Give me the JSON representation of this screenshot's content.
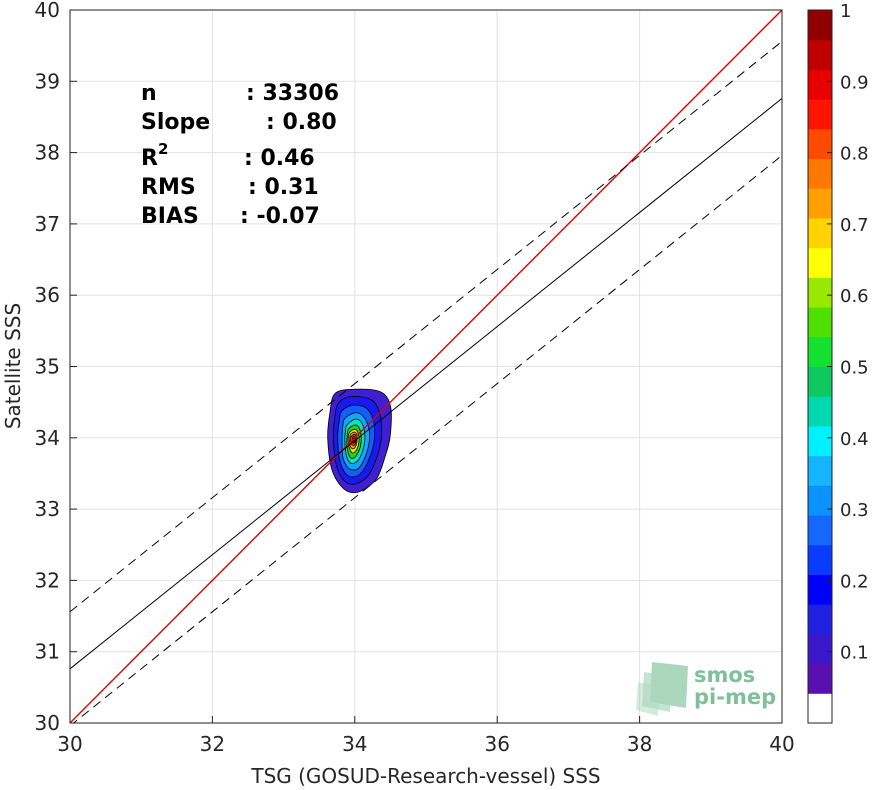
{
  "chart_data": {
    "type": "scatter",
    "subtype": "density-contour",
    "xlabel": "TSG (GOSUD-Research-vessel) SSS",
    "ylabel": "Satellite SSS",
    "xlim": [
      30,
      40
    ],
    "ylim": [
      30,
      40
    ],
    "xticks": [
      "30",
      "32",
      "34",
      "36",
      "38",
      "40"
    ],
    "yticks": [
      "30",
      "31",
      "32",
      "33",
      "34",
      "35",
      "36",
      "37",
      "38",
      "39",
      "40"
    ],
    "grid": true,
    "stats": [
      {
        "label": "n",
        "value": ": 33306"
      },
      {
        "label": "Slope",
        "value": ": 0.80"
      },
      {
        "label": "R",
        "sup": "2",
        "value": ": 0.46"
      },
      {
        "label": "RMS",
        "value": ": 0.31"
      },
      {
        "label": "BIAS",
        "value": ": -0.07"
      }
    ],
    "lines": [
      {
        "kind": "one-to-one",
        "color": "#e00000",
        "style": "solid",
        "points": [
          [
            30,
            30
          ],
          [
            40,
            40
          ]
        ]
      },
      {
        "kind": "regression",
        "color": "#000000",
        "style": "solid",
        "points": [
          [
            30,
            30.76
          ],
          [
            40,
            38.76
          ]
        ]
      },
      {
        "kind": "upper-bound",
        "color": "#000000",
        "style": "dashed",
        "points": [
          [
            30,
            31.56
          ],
          [
            40,
            39.56
          ]
        ]
      },
      {
        "kind": "lower-bound",
        "color": "#000000",
        "style": "dashed",
        "points": [
          [
            30,
            29.96
          ],
          [
            40,
            37.96
          ]
        ]
      }
    ],
    "density_contours": [
      {
        "level": 0.05,
        "color": "#3f1fd0",
        "points": [
          [
            33.72,
            34.62
          ],
          [
            33.97,
            34.68
          ],
          [
            34.35,
            34.65
          ],
          [
            34.5,
            34.45
          ],
          [
            34.5,
            34.05
          ],
          [
            34.43,
            33.75
          ],
          [
            34.3,
            33.42
          ],
          [
            34.05,
            33.24
          ],
          [
            33.85,
            33.28
          ],
          [
            33.68,
            33.55
          ],
          [
            33.62,
            34.0
          ],
          [
            33.65,
            34.35
          ]
        ]
      },
      {
        "level": 0.15,
        "color": "#1a1af0",
        "points": [
          [
            33.78,
            34.5
          ],
          [
            33.98,
            34.58
          ],
          [
            34.25,
            34.52
          ],
          [
            34.36,
            34.3
          ],
          [
            34.37,
            33.98
          ],
          [
            34.3,
            33.7
          ],
          [
            34.18,
            33.46
          ],
          [
            34.0,
            33.35
          ],
          [
            33.85,
            33.4
          ],
          [
            33.74,
            33.62
          ],
          [
            33.7,
            34.0
          ],
          [
            33.72,
            34.3
          ]
        ]
      },
      {
        "level": 0.25,
        "color": "#1060ff",
        "points": [
          [
            33.82,
            34.38
          ],
          [
            33.99,
            34.46
          ],
          [
            34.18,
            34.4
          ],
          [
            34.27,
            34.2
          ],
          [
            34.27,
            33.95
          ],
          [
            34.2,
            33.7
          ],
          [
            34.1,
            33.52
          ],
          [
            33.98,
            33.45
          ],
          [
            33.87,
            33.5
          ],
          [
            33.79,
            33.68
          ],
          [
            33.76,
            34.0
          ],
          [
            33.78,
            34.22
          ]
        ]
      },
      {
        "level": 0.35,
        "color": "#10a8ff",
        "points": [
          [
            33.86,
            34.27
          ],
          [
            34.0,
            34.35
          ],
          [
            34.12,
            34.3
          ],
          [
            34.2,
            34.12
          ],
          [
            34.2,
            33.92
          ],
          [
            34.14,
            33.72
          ],
          [
            34.06,
            33.58
          ],
          [
            33.97,
            33.55
          ],
          [
            33.89,
            33.6
          ],
          [
            33.83,
            33.74
          ],
          [
            33.82,
            34.0
          ],
          [
            33.83,
            34.15
          ]
        ]
      },
      {
        "level": 0.45,
        "color": "#00e6c0",
        "points": [
          [
            33.89,
            34.18
          ],
          [
            34.0,
            34.26
          ],
          [
            34.09,
            34.22
          ],
          [
            34.14,
            34.06
          ],
          [
            34.13,
            33.9
          ],
          [
            34.08,
            33.74
          ],
          [
            34.02,
            33.66
          ],
          [
            33.95,
            33.64
          ],
          [
            33.9,
            33.7
          ],
          [
            33.87,
            33.82
          ],
          [
            33.86,
            34.0
          ],
          [
            33.87,
            34.1
          ]
        ]
      },
      {
        "level": 0.55,
        "color": "#30d010",
        "points": [
          [
            33.91,
            34.12
          ],
          [
            34.0,
            34.18
          ],
          [
            34.06,
            34.14
          ],
          [
            34.09,
            34.02
          ],
          [
            34.08,
            33.88
          ],
          [
            34.04,
            33.78
          ],
          [
            33.99,
            33.72
          ],
          [
            33.94,
            33.72
          ],
          [
            33.91,
            33.78
          ],
          [
            33.89,
            33.88
          ],
          [
            33.89,
            34.0
          ]
        ]
      },
      {
        "level": 0.65,
        "color": "#f0ec00",
        "points": [
          [
            33.93,
            34.08
          ],
          [
            34.0,
            34.12
          ],
          [
            34.04,
            34.08
          ],
          [
            34.06,
            33.98
          ],
          [
            34.04,
            33.86
          ],
          [
            34.0,
            33.8
          ],
          [
            33.96,
            33.79
          ],
          [
            33.93,
            33.84
          ],
          [
            33.91,
            33.92
          ],
          [
            33.91,
            34.02
          ]
        ]
      },
      {
        "level": 0.75,
        "color": "#ffa000",
        "points": [
          [
            33.94,
            34.05
          ],
          [
            34.0,
            34.08
          ],
          [
            34.03,
            34.03
          ],
          [
            34.03,
            33.94
          ],
          [
            34.0,
            33.86
          ],
          [
            33.96,
            33.85
          ],
          [
            33.93,
            33.9
          ],
          [
            33.93,
            33.99
          ]
        ]
      },
      {
        "level": 0.85,
        "color": "#ff3000",
        "points": [
          [
            33.95,
            34.02
          ],
          [
            34.0,
            34.05
          ],
          [
            34.02,
            34.0
          ],
          [
            34.01,
            33.92
          ],
          [
            33.98,
            33.89
          ],
          [
            33.95,
            33.92
          ],
          [
            33.94,
            33.97
          ]
        ]
      },
      {
        "level": 0.95,
        "color": "#b00000",
        "points": [
          [
            33.97,
            34.0
          ],
          [
            34.0,
            34.02
          ],
          [
            34.01,
            33.97
          ],
          [
            33.99,
            33.93
          ],
          [
            33.97,
            33.94
          ]
        ]
      }
    ],
    "colorbar": {
      "ticks": [
        "0.1",
        "0.2",
        "0.3",
        "0.4",
        "0.5",
        "0.6",
        "0.7",
        "0.8",
        "0.9",
        "1"
      ],
      "colors": [
        "#ffffff",
        "#5a10b0",
        "#3a18c8",
        "#2020e0",
        "#0000ff",
        "#0a3cff",
        "#1468ff",
        "#0c92ff",
        "#14b4ff",
        "#00f0ff",
        "#00d8b0",
        "#10c860",
        "#14e030",
        "#50e000",
        "#98e800",
        "#ffff00",
        "#ffd200",
        "#ffa000",
        "#ff7800",
        "#ff4a00",
        "#ff1400",
        "#e80000",
        "#c00000",
        "#900000"
      ]
    }
  },
  "watermark": {
    "line1": "smos",
    "line2": "pi-mep",
    "color": "#7fbf9a"
  }
}
